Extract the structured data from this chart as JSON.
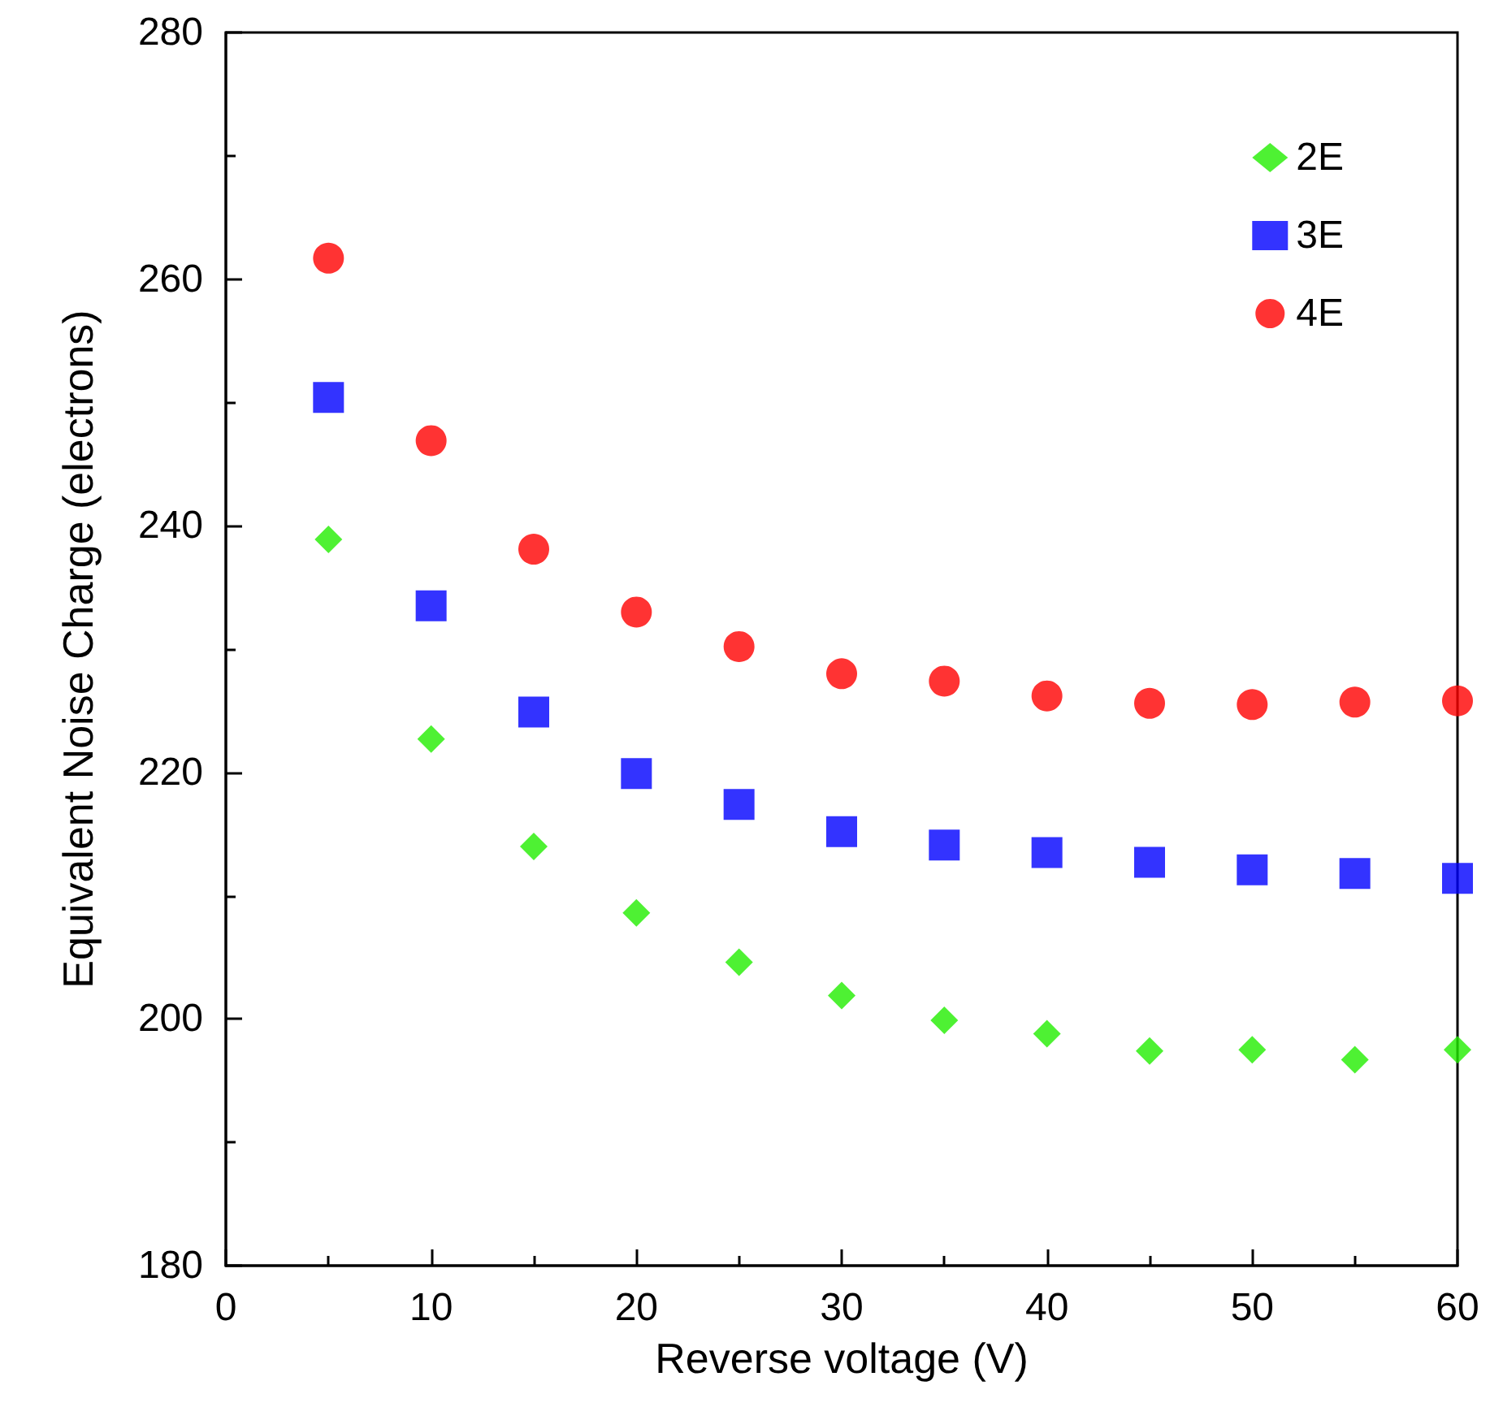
{
  "chart_data": {
    "type": "scatter",
    "xlabel": "Reverse voltage (V)",
    "ylabel": "Equivalent Noise Charge (electrons)",
    "x": [
      5,
      10,
      15,
      20,
      25,
      30,
      35,
      40,
      45,
      50,
      55,
      60
    ],
    "series": [
      {
        "name": "2E",
        "color": "#22ee00",
        "marker": "diamond",
        "values": [
          238.9,
          222.7,
          214.0,
          208.6,
          204.6,
          201.9,
          199.9,
          198.8,
          197.4,
          197.5,
          196.7,
          197.5
        ]
      },
      {
        "name": "3E",
        "color": "#0000ff",
        "marker": "square",
        "values": [
          250.4,
          233.5,
          224.9,
          219.9,
          217.4,
          215.2,
          214.1,
          213.5,
          212.7,
          212.1,
          211.8,
          211.4
        ]
      },
      {
        "name": "4E",
        "color": "#ff0000",
        "marker": "circle",
        "values": [
          261.7,
          246.9,
          238.1,
          233.0,
          230.2,
          228.0,
          227.4,
          226.2,
          225.6,
          225.5,
          225.7,
          225.8
        ]
      }
    ],
    "xlim": [
      0,
      60
    ],
    "xticks": [
      0,
      10,
      20,
      30,
      40,
      50,
      60
    ],
    "ylim": [
      180,
      280
    ],
    "yticks": [
      180,
      200,
      220,
      240,
      260,
      280
    ],
    "grid": false,
    "legend": "top right"
  }
}
